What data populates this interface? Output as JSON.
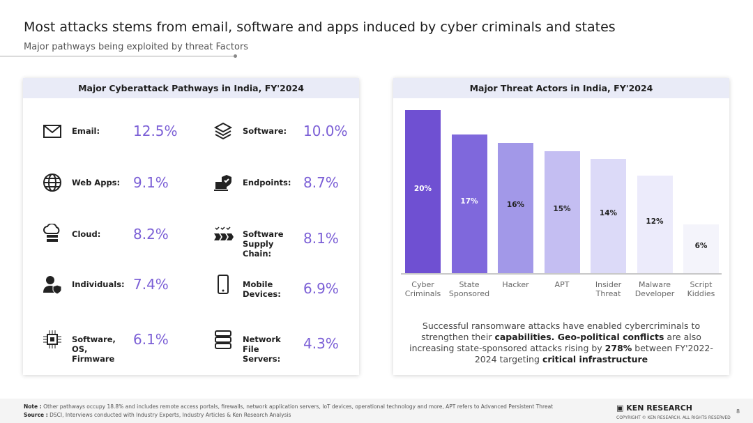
{
  "header": {
    "title": "Most attacks stems from email, software and apps induced by cyber criminals and states",
    "subtitle": "Major pathways being exploited by threat Factors"
  },
  "left": {
    "title": "Major Cyberattack Pathways in India, FY'2024",
    "items": [
      {
        "label": "Email:",
        "value": "12.5%",
        "icon": "mail-icon"
      },
      {
        "label": "Software:",
        "value": "10.0%",
        "icon": "software-layers-icon"
      },
      {
        "label": "Web Apps:",
        "value": "9.1%",
        "icon": "globe-icon"
      },
      {
        "label": "Endpoints:",
        "value": "8.7%",
        "icon": "endpoint-shield-icon"
      },
      {
        "label": "Cloud:",
        "value": "8.2%",
        "icon": "cloud-server-icon"
      },
      {
        "label": "Software Supply Chain:",
        "value": "8.1%",
        "icon": "supply-chain-icon"
      },
      {
        "label": "Individuals:",
        "value": "7.4%",
        "icon": "user-shield-icon"
      },
      {
        "label": "Mobile Devices:",
        "value": "6.9%",
        "icon": "mobile-icon"
      },
      {
        "label": "Software, OS, Firmware",
        "value": "6.1%",
        "icon": "chip-icon"
      },
      {
        "label": "Network File Servers:",
        "value": "4.3%",
        "icon": "server-icon"
      }
    ]
  },
  "chart_data": {
    "type": "bar",
    "title": "Major Threat Actors in India, FY'2024",
    "categories": [
      "Cyber Criminals",
      "State Sponsored",
      "Hacker",
      "APT",
      "Insider Threat",
      "Malware Developer",
      "Script Kiddies"
    ],
    "values": [
      20,
      17,
      16,
      15,
      14,
      12,
      6
    ],
    "labels": [
      "20%",
      "17%",
      "16%",
      "15%",
      "14%",
      "12%",
      "6%"
    ],
    "colors": [
      "#6f50d2",
      "#7f68dc",
      "#a298e8",
      "#c4bef2",
      "#dcdaf8",
      "#ecebfb",
      "#f4f4fb"
    ],
    "ylim": [
      0,
      20
    ],
    "grid": false
  },
  "caption": {
    "p1": "Successful ransomware attacks have enabled cybercriminals to strengthen their ",
    "b1": "capabilities. Geo-political conflicts",
    "p2": " are also increasing state-sponsored attacks rising by ",
    "b2": "278%",
    "p3": " between FY'2022-2024 targeting ",
    "b3": "critical infrastructure"
  },
  "footer": {
    "note_label": "Note :",
    "note": " Other pathways occupy 18.8% and includes remote access portals, firewalls, network application servers, IoT devices, operational technology and more, APT refers to Advanced Persistent Threat",
    "source_label": "Source :",
    "source": " DSCI, Interviews conducted with Industry Experts, Industry Articles & Ken Research Analysis",
    "brand": "KEN RESEARCH",
    "copyright": "COPYRIGHT © KEN RESEARCH. ALL RIGHTS RESERVED",
    "page": "8"
  }
}
